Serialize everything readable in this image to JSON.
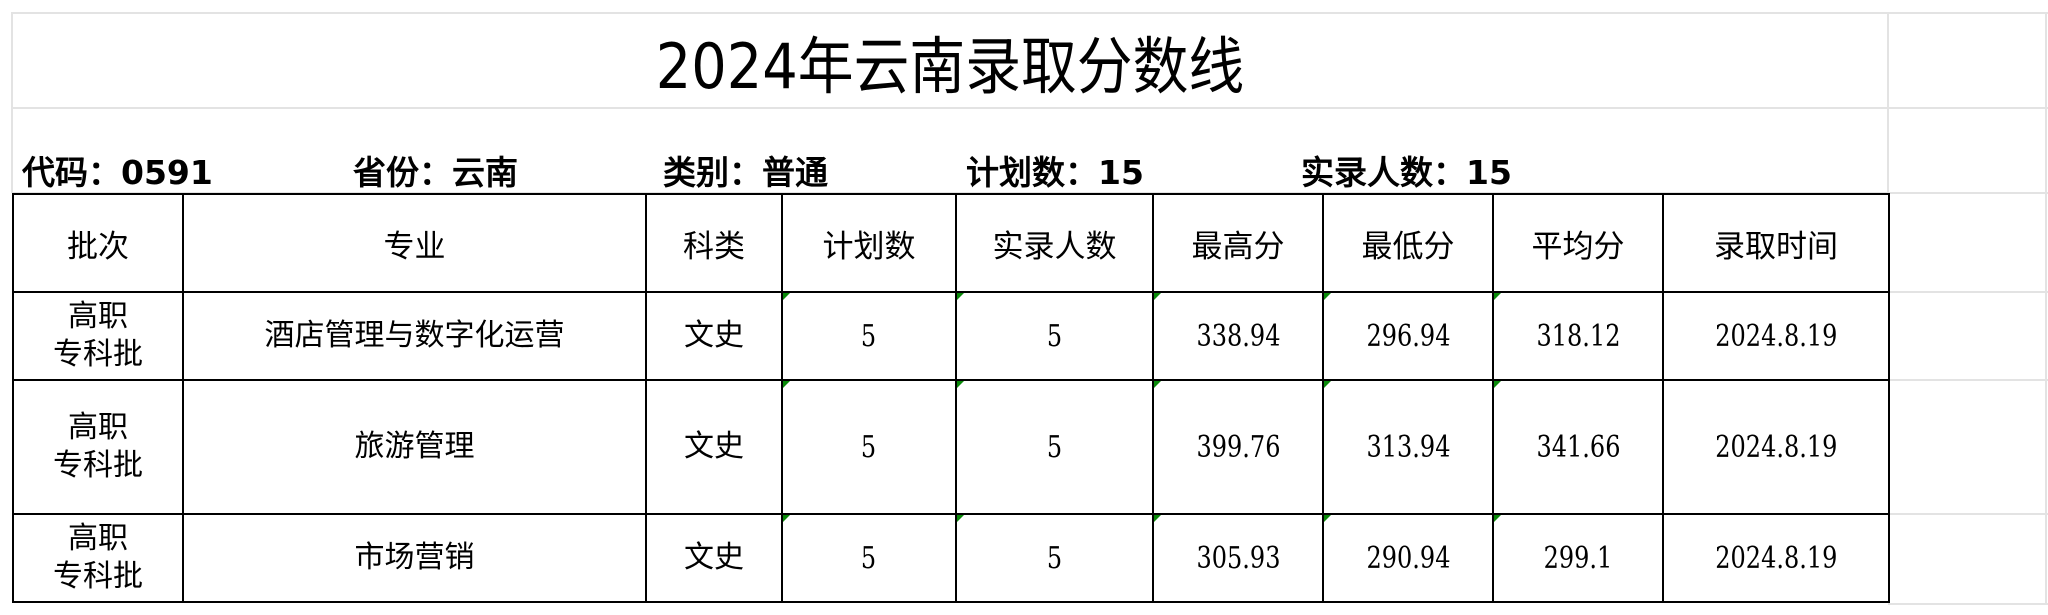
{
  "title": "2024年云南录取分数线",
  "info": [
    {
      "label": "代码：",
      "value": "0591"
    },
    {
      "label": "省份：",
      "value": "云南"
    },
    {
      "label": "类别：",
      "value": "普通"
    },
    {
      "label": "计划数：",
      "value": "15"
    },
    {
      "label": "实录人数：",
      "value": "15"
    }
  ],
  "table": {
    "headers": [
      "批次",
      "专业",
      "科类",
      "计划数",
      "实录人数",
      "最高分",
      "最低分",
      "平均分",
      "录取时间"
    ],
    "rows": [
      {
        "batch_line1": "高职",
        "batch_line2": "专科批",
        "major": "酒店管理与数字化运营",
        "category": "文史",
        "plan": "5",
        "admitted": "5",
        "max": "338.94",
        "min": "296.94",
        "avg": "318.12",
        "date": "2024.8.19"
      },
      {
        "batch_line1": "高职",
        "batch_line2": "专科批",
        "major": "旅游管理",
        "category": "文史",
        "plan": "5",
        "admitted": "5",
        "max": "399.76",
        "min": "313.94",
        "avg": "341.66",
        "date": "2024.8.19"
      },
      {
        "batch_line1": "高职",
        "batch_line2": "专科批",
        "major": "市场营销",
        "category": "文史",
        "plan": "5",
        "admitted": "5",
        "max": "305.93",
        "min": "290.94",
        "avg": "299.1",
        "date": "2024.8.19"
      }
    ]
  },
  "colors": {
    "gridline": "#e3e3e3",
    "border": "#000000",
    "comment_flag": "#0a8a0a"
  }
}
